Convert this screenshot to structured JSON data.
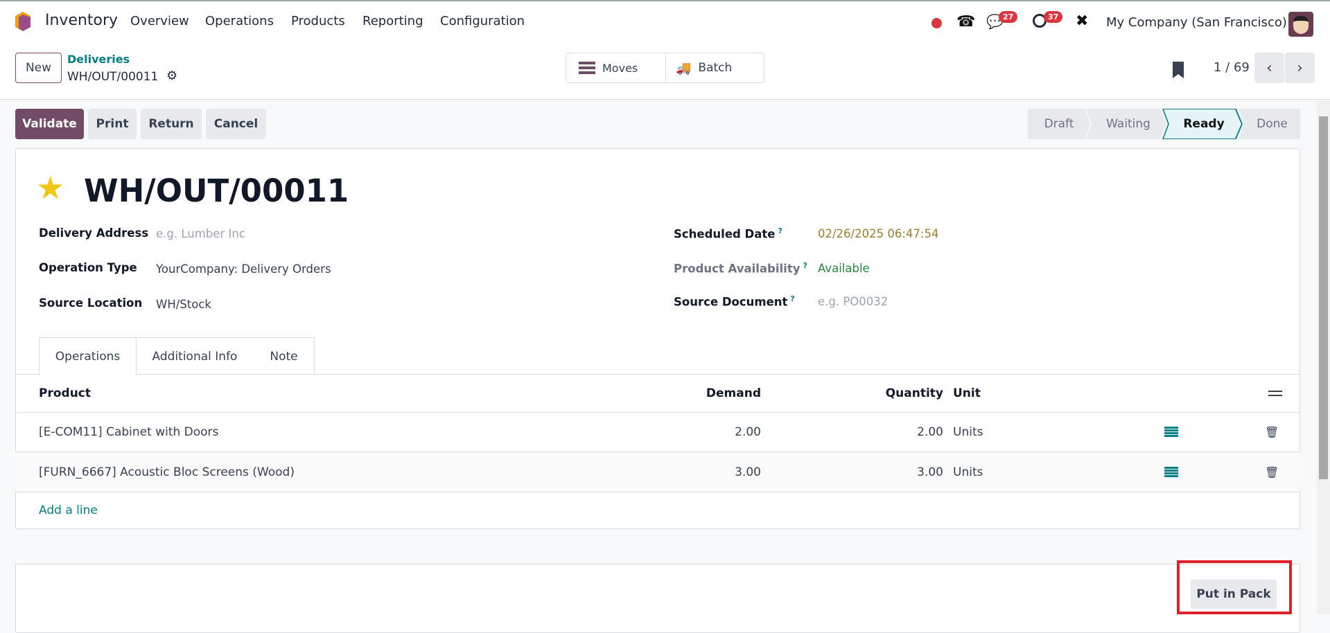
{
  "navbar": {
    "app_name": "Inventory",
    "menu": [
      "Overview",
      "Operations",
      "Products",
      "Reporting",
      "Configuration"
    ],
    "messages_count": "27",
    "activities_count": "37",
    "company": "My Company (San Francisco)"
  },
  "control_panel": {
    "new_label": "New",
    "breadcrumb_parent": "Deliveries",
    "breadcrumb_current": "WH/OUT/00011",
    "moves_label": "Moves",
    "batch_label": "Batch",
    "pager": "1 / 69"
  },
  "actions": {
    "validate": "Validate",
    "print": "Print",
    "return": "Return",
    "cancel": "Cancel"
  },
  "statusbar": {
    "stages": [
      "Draft",
      "Waiting",
      "Ready",
      "Done"
    ],
    "active": "Ready"
  },
  "form": {
    "title": "WH/OUT/00011",
    "starred": true,
    "left_fields": [
      {
        "label": "Delivery Address",
        "placeholder": "e.g. Lumber Inc"
      },
      {
        "label": "Operation Type",
        "value": "YourCompany: Delivery Orders"
      },
      {
        "label": "Source Location",
        "value": "WH/Stock"
      }
    ],
    "right_fields": [
      {
        "label": "Scheduled Date",
        "value": "02/26/2025 06:47:54",
        "help": "?"
      },
      {
        "label": "Product Availability",
        "value": "Available",
        "help": "?"
      },
      {
        "label": "Source Document",
        "placeholder": "e.g. PO0032",
        "help": "?"
      }
    ],
    "tabs": [
      "Operations",
      "Additional Info",
      "Note"
    ],
    "active_tab": "Operations"
  },
  "table": {
    "columns": [
      "Product",
      "Demand",
      "Quantity",
      "Unit"
    ],
    "rows": [
      {
        "product": "[E-COM11] Cabinet with Doors",
        "demand": "2.00",
        "quantity": "2.00",
        "unit": "Units"
      },
      {
        "product": "[FURN_6667] Acoustic Bloc Screens (Wood)",
        "demand": "3.00",
        "quantity": "3.00",
        "unit": "Units"
      }
    ],
    "add_line": "Add a line"
  },
  "footer": {
    "put_in_pack": "Put in Pack"
  },
  "colors": {
    "brand": "#714b67",
    "accent": "#017e84",
    "date": "#9a7d2e",
    "available": "#28853c",
    "highlight_box": "#e0202a"
  }
}
